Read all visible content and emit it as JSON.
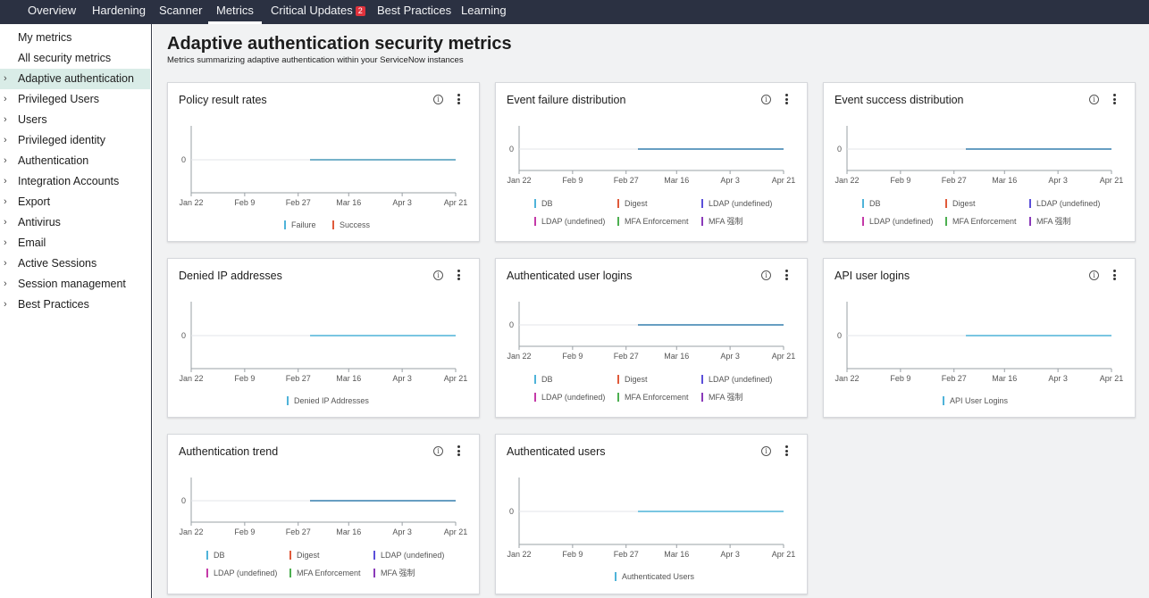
{
  "topnav": {
    "tabs": [
      {
        "label": "Overview",
        "active": false
      },
      {
        "label": "Hardening",
        "active": false
      },
      {
        "label": "Scanner",
        "active": false
      },
      {
        "label": "Metrics",
        "active": true
      },
      {
        "label": "Critical Updates",
        "active": false,
        "badge": "2"
      },
      {
        "label": "Best Practices",
        "active": false
      },
      {
        "label": "Learning",
        "active": false
      }
    ]
  },
  "sidebar": {
    "items": [
      {
        "label": "My metrics",
        "expandable": false,
        "active": false
      },
      {
        "label": "All security metrics",
        "expandable": false,
        "active": false
      },
      {
        "label": "Adaptive authentication",
        "expandable": true,
        "active": true
      },
      {
        "label": "Privileged Users",
        "expandable": true,
        "active": false
      },
      {
        "label": "Users",
        "expandable": true,
        "active": false
      },
      {
        "label": "Privileged identity",
        "expandable": true,
        "active": false
      },
      {
        "label": "Authentication",
        "expandable": true,
        "active": false
      },
      {
        "label": "Integration Accounts",
        "expandable": true,
        "active": false
      },
      {
        "label": "Export",
        "expandable": true,
        "active": false
      },
      {
        "label": "Antivirus",
        "expandable": true,
        "active": false
      },
      {
        "label": "Email",
        "expandable": true,
        "active": false
      },
      {
        "label": "Active Sessions",
        "expandable": true,
        "active": false
      },
      {
        "label": "Session management",
        "expandable": true,
        "active": false
      },
      {
        "label": "Best Practices",
        "expandable": true,
        "active": false
      }
    ]
  },
  "page": {
    "title": "Adaptive authentication security metrics",
    "subtitle": "Metrics summarizing adaptive authentication within your ServiceNow instances"
  },
  "icons": {
    "info": "info-icon",
    "more": "more-vertical-icon",
    "chevron": "chevron-right-icon"
  },
  "colors": {
    "nav_bg": "#2b3142",
    "active_side": "#d9ece7",
    "badge": "#e0323c",
    "line_teal": "#2ab1c0",
    "line_red": "#e05a3a"
  },
  "cards": [
    {
      "title": "Policy result rates",
      "chart_data": {
        "type": "line",
        "x_ticks": [
          "Jan 22",
          "Feb 9",
          "Feb 27",
          "Mar 16",
          "Apr 3",
          "Apr 21"
        ],
        "y_ticks": [
          "0"
        ],
        "x": [
          "Mar 3",
          "Apr 21"
        ],
        "series": [
          {
            "name": "Failure",
            "color": "#4fb3d9",
            "values": [
              0,
              0
            ]
          },
          {
            "name": "Success",
            "color": "#e05a3a",
            "values": [
              0,
              0
            ]
          }
        ]
      }
    },
    {
      "title": "Event failure distribution",
      "chart_data": {
        "type": "line",
        "x_ticks": [
          "Jan 22",
          "Feb 9",
          "Feb 27",
          "Mar 16",
          "Apr 3",
          "Apr 21"
        ],
        "y_ticks": [
          "0"
        ],
        "x": [
          "Mar 3",
          "Apr 21"
        ],
        "series": [
          {
            "name": "DB",
            "color": "#4fb3d9",
            "values": [
              0,
              0
            ]
          },
          {
            "name": "Digest",
            "color": "#e05a3a",
            "values": [
              0,
              0
            ]
          },
          {
            "name": "LDAP (undefined)",
            "color": "#5b4fd9",
            "values": [
              0,
              0
            ]
          },
          {
            "name": "LDAP (undefined)",
            "color": "#c43aa8",
            "values": [
              0,
              0
            ]
          },
          {
            "name": "MFA Enforcement",
            "color": "#4caf50",
            "values": [
              0,
              0
            ]
          },
          {
            "name": "MFA 强制",
            "color": "#8a3ab9",
            "values": [
              0,
              0
            ]
          }
        ]
      }
    },
    {
      "title": "Event success distribution",
      "chart_data": {
        "type": "line",
        "x_ticks": [
          "Jan 22",
          "Feb 9",
          "Feb 27",
          "Mar 16",
          "Apr 3",
          "Apr 21"
        ],
        "y_ticks": [
          "0"
        ],
        "x": [
          "Mar 3",
          "Apr 21"
        ],
        "series": [
          {
            "name": "DB",
            "color": "#4fb3d9",
            "values": [
              0,
              0
            ]
          },
          {
            "name": "Digest",
            "color": "#e05a3a",
            "values": [
              0,
              0
            ]
          },
          {
            "name": "LDAP (undefined)",
            "color": "#5b4fd9",
            "values": [
              0,
              0
            ]
          },
          {
            "name": "LDAP (undefined)",
            "color": "#c43aa8",
            "values": [
              0,
              0
            ]
          },
          {
            "name": "MFA Enforcement",
            "color": "#4caf50",
            "values": [
              0,
              0
            ]
          },
          {
            "name": "MFA 强制",
            "color": "#8a3ab9",
            "values": [
              0,
              0
            ]
          }
        ]
      }
    },
    {
      "title": "Denied IP addresses",
      "chart_data": {
        "type": "line",
        "x_ticks": [
          "Jan 22",
          "Feb 9",
          "Feb 27",
          "Mar 16",
          "Apr 3",
          "Apr 21"
        ],
        "y_ticks": [
          "0"
        ],
        "x": [
          "Mar 3",
          "Apr 21"
        ],
        "series": [
          {
            "name": "Denied IP Addresses",
            "color": "#4fb3d9",
            "values": [
              0,
              0
            ]
          }
        ]
      }
    },
    {
      "title": "Authenticated user logins",
      "chart_data": {
        "type": "line",
        "x_ticks": [
          "Jan 22",
          "Feb 9",
          "Feb 27",
          "Mar 16",
          "Apr 3",
          "Apr 21"
        ],
        "y_ticks": [
          "0"
        ],
        "x": [
          "Mar 3",
          "Apr 21"
        ],
        "series": [
          {
            "name": "DB",
            "color": "#4fb3d9",
            "values": [
              0,
              0
            ]
          },
          {
            "name": "Digest",
            "color": "#e05a3a",
            "values": [
              0,
              0
            ]
          },
          {
            "name": "LDAP (undefined)",
            "color": "#5b4fd9",
            "values": [
              0,
              0
            ]
          },
          {
            "name": "LDAP (undefined)",
            "color": "#c43aa8",
            "values": [
              0,
              0
            ]
          },
          {
            "name": "MFA Enforcement",
            "color": "#4caf50",
            "values": [
              0,
              0
            ]
          },
          {
            "name": "MFA 强制",
            "color": "#8a3ab9",
            "values": [
              0,
              0
            ]
          }
        ]
      }
    },
    {
      "title": "API user logins",
      "chart_data": {
        "type": "line",
        "x_ticks": [
          "Jan 22",
          "Feb 9",
          "Feb 27",
          "Mar 16",
          "Apr 3",
          "Apr 21"
        ],
        "y_ticks": [
          "0"
        ],
        "x": [
          "Mar 3",
          "Apr 21"
        ],
        "series": [
          {
            "name": "API User Logins",
            "color": "#4fb3d9",
            "values": [
              0,
              0
            ]
          }
        ]
      }
    },
    {
      "title": "Authentication trend",
      "chart_data": {
        "type": "line",
        "x_ticks": [
          "Jan 22",
          "Feb 9",
          "Feb 27",
          "Mar 16",
          "Apr 3",
          "Apr 21"
        ],
        "y_ticks": [
          "0"
        ],
        "x": [
          "Mar 3",
          "Apr 21"
        ],
        "series": [
          {
            "name": "DB",
            "color": "#4fb3d9",
            "values": [
              0,
              0
            ]
          },
          {
            "name": "Digest",
            "color": "#e05a3a",
            "values": [
              0,
              0
            ]
          },
          {
            "name": "LDAP (undefined)",
            "color": "#5b4fd9",
            "values": [
              0,
              0
            ]
          },
          {
            "name": "LDAP (undefined)",
            "color": "#c43aa8",
            "values": [
              0,
              0
            ]
          },
          {
            "name": "MFA Enforcement",
            "color": "#4caf50",
            "values": [
              0,
              0
            ]
          },
          {
            "name": "MFA 强制",
            "color": "#8a3ab9",
            "values": [
              0,
              0
            ]
          }
        ]
      }
    },
    {
      "title": "Authenticated users",
      "chart_data": {
        "type": "line",
        "x_ticks": [
          "Jan 22",
          "Feb 9",
          "Feb 27",
          "Mar 16",
          "Apr 3",
          "Apr 21"
        ],
        "y_ticks": [
          "0"
        ],
        "x": [
          "Mar 3",
          "Apr 21"
        ],
        "series": [
          {
            "name": "Authenticated Users",
            "color": "#4fb3d9",
            "values": [
              0,
              0
            ]
          }
        ]
      }
    }
  ]
}
